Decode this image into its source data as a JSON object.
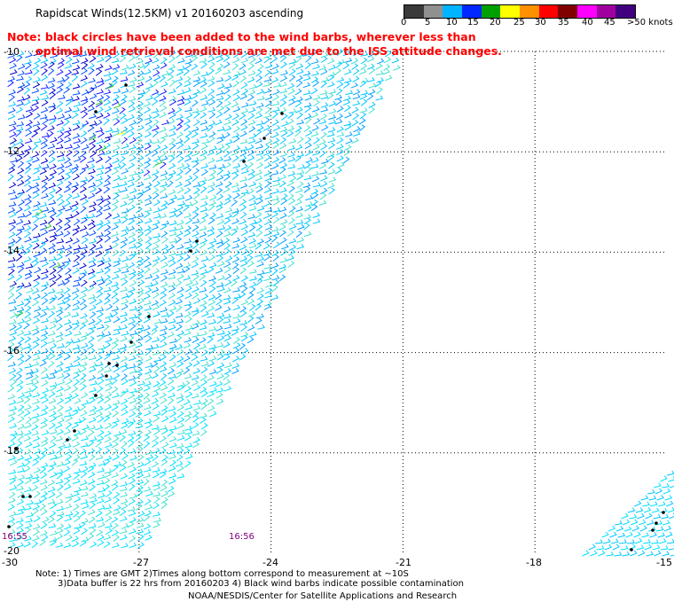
{
  "header": {
    "title": "Rapidscat Winds(12.5KM) v1 20160203 ascending",
    "note_line1": "Note: black circles have been added to the wind barbs, wherever less than",
    "note_line2": "optimal wind retrieval conditions are met due to the ISS attitude changes."
  },
  "speed_scale": {
    "labels": [
      "0",
      "5",
      "10",
      "15",
      "20",
      "25",
      "30",
      "35",
      "40",
      "45",
      ">50 knots"
    ],
    "colors": [
      "#000000",
      "#808080",
      "#00b0ff",
      "#0000ff",
      "#00a000",
      "#ffff00",
      "#ff8000",
      "#ff0000",
      "#800000",
      "#ff00ff",
      "#800080",
      "#400080"
    ]
  },
  "map": {
    "lat_labels": [
      "-10",
      "-12",
      "-14",
      "-16",
      "-18",
      "-20"
    ],
    "lon_labels": [
      "-30",
      "-27",
      "-24",
      "-21",
      "-18",
      "-15"
    ],
    "time_labels": [
      "16:55",
      "16:56"
    ],
    "barb_colors": [
      "#00c8ff",
      "#0050ff",
      "#00e0ff",
      "#1a1aff",
      "#40e0d0",
      "#0000cc",
      "#00a0ff"
    ]
  },
  "footer": {
    "note1": "Note: 1) Times are GMT 2)Times along bottom correspond to measurement at ~10S",
    "note2": "3)Data buffer is 22 hrs from 20160203 4) Black wind barbs indicate possible contamination",
    "credit": "NOAA/NESDIS/Center for Satellite Applications and Research"
  }
}
